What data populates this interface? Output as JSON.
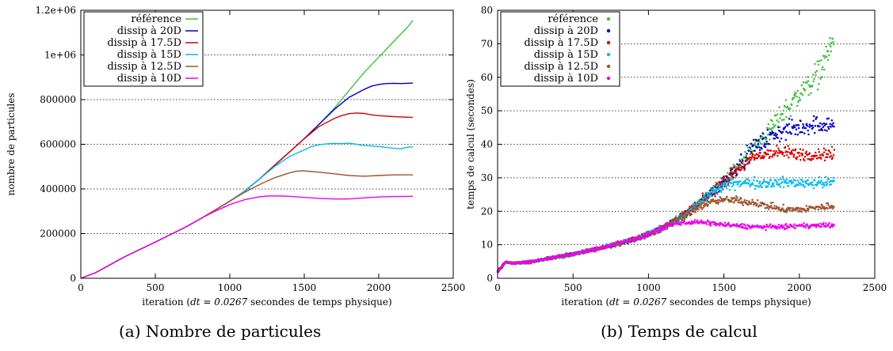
{
  "captions": {
    "a": "(a) Nombre de particules",
    "b": "(b) Temps de calcul"
  },
  "chart_data": [
    {
      "type": "line",
      "xlabel_pre": "iteration (",
      "xlabel_math": "dt = 0.0267",
      "xlabel_post": " secondes de temps physique)",
      "ylabel": "nombre de particules",
      "xlim": [
        0,
        2500
      ],
      "ylim": [
        0,
        1200000
      ],
      "xticks": [
        0,
        500,
        1000,
        1500,
        2000,
        2500
      ],
      "yticks": [
        {
          "v": 0,
          "label": "0"
        },
        {
          "v": 200000,
          "label": "200000"
        },
        {
          "v": 400000,
          "label": "400000"
        },
        {
          "v": 600000,
          "label": "600000"
        },
        {
          "v": 800000,
          "label": "800000"
        },
        {
          "v": 1000000,
          "label": "1e+06"
        },
        {
          "v": 1200000,
          "label": "1.2e+06"
        }
      ],
      "grid": "horizontal-dotted",
      "legend_position": "top-left",
      "series": [
        {
          "name": "référence",
          "color": "#3fbf3f",
          "x": [
            0,
            100,
            200,
            300,
            400,
            500,
            600,
            700,
            800,
            900,
            1000,
            1100,
            1200,
            1300,
            1400,
            1500,
            1600,
            1700,
            1800,
            1900,
            2000,
            2100,
            2200,
            2230
          ],
          "y": [
            0,
            25000,
            62000,
            98000,
            130000,
            162000,
            195000,
            228000,
            265000,
            305000,
            345000,
            390000,
            445000,
            505000,
            565000,
            625000,
            690000,
            760000,
            840000,
            920000,
            990000,
            1060000,
            1130000,
            1155000
          ]
        },
        {
          "name": "dissip à 20D",
          "color": "#0000cc",
          "x": [
            0,
            100,
            200,
            300,
            400,
            500,
            600,
            700,
            800,
            900,
            1000,
            1100,
            1200,
            1300,
            1400,
            1500,
            1600,
            1700,
            1800,
            1900,
            1950,
            2000,
            2050,
            2100,
            2150,
            2230
          ],
          "y": [
            0,
            25000,
            62000,
            98000,
            130000,
            162000,
            195000,
            228000,
            265000,
            305000,
            345000,
            390000,
            445000,
            505000,
            565000,
            625000,
            690000,
            755000,
            810000,
            845000,
            860000,
            868000,
            872000,
            873000,
            872000,
            874000
          ]
        },
        {
          "name": "dissip à 17.5D",
          "color": "#dd0000",
          "x": [
            0,
            100,
            200,
            300,
            400,
            500,
            600,
            700,
            800,
            900,
            1000,
            1100,
            1200,
            1300,
            1400,
            1500,
            1600,
            1700,
            1750,
            1800,
            1850,
            1900,
            1950,
            2000,
            2100,
            2230
          ],
          "y": [
            0,
            25000,
            62000,
            98000,
            130000,
            162000,
            195000,
            228000,
            265000,
            305000,
            345000,
            390000,
            445000,
            505000,
            565000,
            625000,
            680000,
            715000,
            728000,
            737000,
            740000,
            738000,
            732000,
            728000,
            724000,
            720000
          ]
        },
        {
          "name": "dissip à 15D",
          "color": "#00bbee",
          "x": [
            0,
            100,
            200,
            300,
            400,
            500,
            600,
            700,
            800,
            900,
            1000,
            1100,
            1200,
            1300,
            1400,
            1500,
            1550,
            1600,
            1650,
            1700,
            1750,
            1800,
            1850,
            1900,
            2000,
            2100,
            2150,
            2200,
            2230
          ],
          "y": [
            0,
            25000,
            62000,
            98000,
            130000,
            162000,
            195000,
            228000,
            265000,
            305000,
            345000,
            390000,
            445000,
            500000,
            545000,
            575000,
            590000,
            598000,
            602000,
            604000,
            603000,
            605000,
            600000,
            595000,
            590000,
            582000,
            580000,
            588000,
            588000
          ]
        },
        {
          "name": "dissip à 12.5D",
          "color": "#a0522d",
          "x": [
            0,
            100,
            200,
            300,
            400,
            500,
            600,
            700,
            800,
            900,
            1000,
            1100,
            1200,
            1300,
            1400,
            1450,
            1500,
            1550,
            1600,
            1700,
            1800,
            1900,
            2000,
            2100,
            2230
          ],
          "y": [
            0,
            25000,
            62000,
            98000,
            130000,
            162000,
            195000,
            228000,
            265000,
            305000,
            345000,
            385000,
            420000,
            450000,
            472000,
            480000,
            481000,
            478000,
            475000,
            468000,
            460000,
            457000,
            460000,
            463000,
            463000
          ]
        },
        {
          "name": "dissip à 10D",
          "color": "#ee00ee",
          "x": [
            0,
            100,
            200,
            300,
            400,
            500,
            600,
            700,
            800,
            900,
            1000,
            1100,
            1200,
            1250,
            1300,
            1350,
            1400,
            1500,
            1600,
            1700,
            1800,
            1900,
            2000,
            2100,
            2230
          ],
          "y": [
            0,
            25000,
            62000,
            98000,
            130000,
            162000,
            195000,
            228000,
            265000,
            300000,
            330000,
            352000,
            365000,
            368000,
            369000,
            368000,
            367000,
            362000,
            358000,
            355000,
            355000,
            360000,
            364000,
            366000,
            367000
          ]
        }
      ]
    },
    {
      "type": "scatter",
      "xlabel_pre": "iteration (",
      "xlabel_math": "dt = 0.0267",
      "xlabel_post": " secondes de temps physique)",
      "ylabel": "temps de calcul (secondes)",
      "xlim": [
        0,
        2500
      ],
      "ylim": [
        0,
        80
      ],
      "xticks": [
        0,
        500,
        1000,
        1500,
        2000,
        2500
      ],
      "yticks": [
        {
          "v": 0,
          "label": "0"
        },
        {
          "v": 10,
          "label": "10"
        },
        {
          "v": 20,
          "label": "20"
        },
        {
          "v": 30,
          "label": "30"
        },
        {
          "v": 40,
          "label": "40"
        },
        {
          "v": 50,
          "label": "50"
        },
        {
          "v": 60,
          "label": "60"
        },
        {
          "v": 70,
          "label": "70"
        },
        {
          "v": 80,
          "label": "80"
        }
      ],
      "grid": "horizontal-dotted",
      "legend_position": "top-left",
      "series": [
        {
          "name": "référence",
          "color": "#3fbf3f",
          "x": [
            0,
            50,
            100,
            200,
            300,
            400,
            500,
            600,
            700,
            800,
            900,
            1000,
            1100,
            1200,
            1300,
            1400,
            1500,
            1600,
            1700,
            1800,
            1900,
            2000,
            2100,
            2150,
            2200,
            2230
          ],
          "y": [
            2,
            4.8,
            4.5,
            4.8,
            5.6,
            6.4,
            7.2,
            8.2,
            9.2,
            10.4,
            11.6,
            13.2,
            15.2,
            17.8,
            21,
            25,
            29,
            34,
            39,
            44,
            50,
            55,
            60,
            63,
            69,
            71
          ],
          "spread": [
            0.6,
            0.5,
            0.5,
            0.6,
            0.6,
            0.7,
            0.7,
            0.8,
            0.8,
            0.9,
            1,
            1.1,
            1.3,
            1.6,
            2,
            2.5,
            3,
            3.5,
            4,
            4.5,
            5,
            5.5,
            6,
            6,
            6,
            4
          ]
        },
        {
          "name": "dissip à 20D",
          "color": "#0000cc",
          "x": [
            0,
            50,
            100,
            200,
            300,
            400,
            500,
            600,
            700,
            800,
            900,
            1000,
            1100,
            1200,
            1300,
            1400,
            1500,
            1600,
            1700,
            1800,
            1900,
            2000,
            2100,
            2200,
            2230
          ],
          "y": [
            2,
            4.8,
            4.5,
            4.8,
            5.6,
            6.4,
            7.2,
            8.2,
            9.2,
            10.4,
            11.6,
            13.2,
            15.2,
            17.8,
            21,
            25,
            29,
            34,
            39,
            42,
            44,
            45,
            46,
            46,
            46
          ],
          "spread": [
            0.6,
            0.5,
            0.5,
            0.6,
            0.6,
            0.7,
            0.7,
            0.8,
            0.8,
            0.9,
            1,
            1.1,
            1.3,
            1.6,
            2,
            2.5,
            3,
            3.5,
            4,
            4,
            4,
            4,
            4,
            4,
            3
          ]
        },
        {
          "name": "dissip à 17.5D",
          "color": "#dd0000",
          "x": [
            0,
            50,
            100,
            200,
            300,
            400,
            500,
            600,
            700,
            800,
            900,
            1000,
            1100,
            1200,
            1300,
            1400,
            1500,
            1600,
            1700,
            1800,
            1900,
            2000,
            2100,
            2200,
            2230
          ],
          "y": [
            2,
            4.8,
            4.5,
            4.8,
            5.6,
            6.4,
            7.2,
            8.2,
            9.2,
            10.4,
            11.6,
            13.2,
            15.2,
            17.8,
            21,
            25,
            29,
            33,
            36,
            37.5,
            37.5,
            37,
            37,
            37,
            37
          ],
          "spread": [
            0.6,
            0.5,
            0.5,
            0.6,
            0.6,
            0.7,
            0.7,
            0.8,
            0.8,
            0.9,
            1,
            1.1,
            1.3,
            1.6,
            2,
            2.5,
            3,
            3,
            2.8,
            2.8,
            2.8,
            2.8,
            2.8,
            2.8,
            2.5
          ]
        },
        {
          "name": "dissip à 15D",
          "color": "#00bbee",
          "x": [
            0,
            50,
            100,
            200,
            300,
            400,
            500,
            600,
            700,
            800,
            900,
            1000,
            1100,
            1200,
            1300,
            1400,
            1500,
            1600,
            1700,
            1800,
            1900,
            2000,
            2100,
            2200,
            2230
          ],
          "y": [
            2,
            4.8,
            4.5,
            4.8,
            5.6,
            6.4,
            7.2,
            8.2,
            9.2,
            10.4,
            11.6,
            13.2,
            15.2,
            17.8,
            21,
            25,
            27.5,
            28.5,
            28.5,
            28.5,
            28.5,
            28.5,
            28.5,
            28.5,
            29
          ],
          "spread": [
            0.6,
            0.5,
            0.5,
            0.6,
            0.6,
            0.7,
            0.7,
            0.8,
            0.8,
            0.9,
            1,
            1.1,
            1.3,
            1.6,
            2,
            2.5,
            2.2,
            2.2,
            2.2,
            2.2,
            2.2,
            2.2,
            2.2,
            2.2,
            2
          ]
        },
        {
          "name": "dissip à 12.5D",
          "color": "#a0522d",
          "x": [
            0,
            50,
            100,
            200,
            300,
            400,
            500,
            600,
            700,
            800,
            900,
            1000,
            1100,
            1200,
            1300,
            1400,
            1500,
            1600,
            1700,
            1800,
            1900,
            2000,
            2100,
            2200,
            2230
          ],
          "y": [
            2,
            4.8,
            4.5,
            4.8,
            5.6,
            6.4,
            7.2,
            8.2,
            9.2,
            10.4,
            11.6,
            13.2,
            15.2,
            17.8,
            20.5,
            22.5,
            23.5,
            23.2,
            22.5,
            21.5,
            20.5,
            20.5,
            21,
            21.5,
            21.5
          ],
          "spread": [
            0.6,
            0.5,
            0.5,
            0.6,
            0.6,
            0.7,
            0.7,
            0.8,
            0.8,
            0.9,
            1,
            1.1,
            1.3,
            1.5,
            1.6,
            1.6,
            1.6,
            1.6,
            1.5,
            1.5,
            1.5,
            1.5,
            1.5,
            1.5,
            1.2
          ]
        },
        {
          "name": "dissip à 10D",
          "color": "#ee00ee",
          "x": [
            0,
            50,
            100,
            200,
            300,
            400,
            500,
            600,
            700,
            800,
            900,
            1000,
            1100,
            1200,
            1300,
            1400,
            1500,
            1600,
            1700,
            1800,
            1900,
            2000,
            2100,
            2200,
            2230
          ],
          "y": [
            2,
            4.8,
            4.5,
            4.8,
            5.6,
            6.4,
            7.2,
            8.2,
            9.2,
            10.4,
            11.6,
            13.2,
            15.2,
            16.5,
            16.8,
            16.5,
            16,
            15.6,
            15.4,
            15.3,
            15.4,
            15.6,
            15.8,
            15.8,
            15.8
          ],
          "spread": [
            0.6,
            0.5,
            0.5,
            0.6,
            0.6,
            0.7,
            0.7,
            0.8,
            0.8,
            0.9,
            1,
            1.1,
            1.2,
            1,
            1,
            1,
            1,
            1,
            1,
            1,
            1,
            1,
            1,
            1,
            0.8
          ]
        }
      ]
    }
  ]
}
